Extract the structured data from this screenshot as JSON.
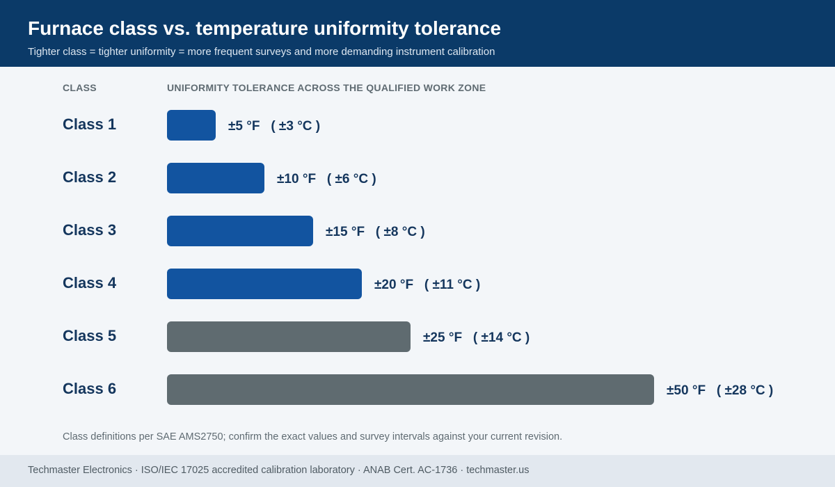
{
  "header": {
    "title": "Furnace class vs. temperature uniformity tolerance",
    "subtitle": "Tighter class = tighter uniformity = more frequent surveys and more demanding instrument calibration"
  },
  "columns": {
    "class_label": "CLASS",
    "tolerance_label": "UNIFORMITY TOLERANCE ACROSS THE QUALIFIED WORK ZONE"
  },
  "colors": {
    "header_bg": "#0b3a68",
    "bar_primary": "#1254a0",
    "bar_secondary": "#5f6b70",
    "text_dark": "#14365d"
  },
  "chart_data": {
    "type": "bar",
    "orientation": "horizontal",
    "categories": [
      "Class 1",
      "Class 2",
      "Class 3",
      "Class 4",
      "Class 5",
      "Class 6"
    ],
    "values": [
      5,
      10,
      15,
      20,
      25,
      50
    ],
    "unit": "°F",
    "value_labels": [
      "±5 °F   ( ±3 °C )",
      "±10 °F   ( ±6 °C )",
      "±15 °F   ( ±8 °C )",
      "±20 °F   ( ±11 °C )",
      "±25 °F   ( ±14 °C )",
      "±50 °F   ( ±28 °C )"
    ],
    "bar_colors": [
      "#1254a0",
      "#1254a0",
      "#1254a0",
      "#1254a0",
      "#5f6b70",
      "#5f6b70"
    ],
    "xlim": [
      0,
      50
    ],
    "grid": false,
    "legend": "none"
  },
  "footnote": "Class definitions per SAE AMS2750; confirm the exact values and survey intervals against your current revision.",
  "footer": {
    "text": "Techmaster Electronics · ISO/IEC 17025 accredited calibration laboratory · ANAB Cert. AC-1736 · techmaster.us"
  }
}
